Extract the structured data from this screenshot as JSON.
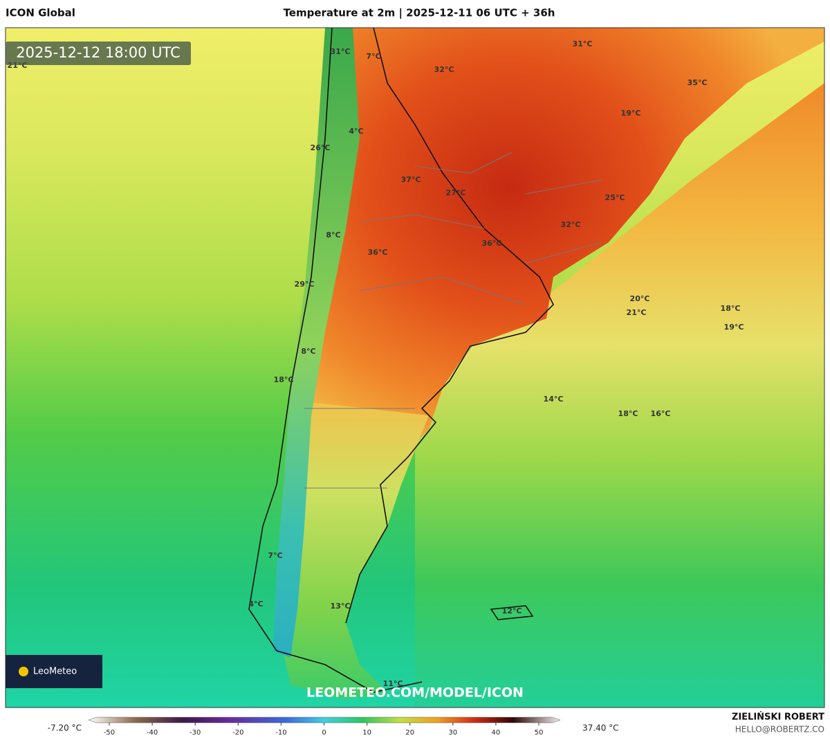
{
  "header": {
    "model": "ICON Global",
    "title": "Temperature at 2m | 2025-12-11 06 UTC + 36h"
  },
  "map": {
    "valid_time": "2025-12-12 18:00 UTC",
    "labels": [
      "21°C",
      "31°C",
      "7°C",
      "32°C",
      "31°C",
      "35°C",
      "19°C",
      "4°C",
      "26°C",
      "37°C",
      "27°C",
      "25°C",
      "32°C",
      "8°C",
      "36°C",
      "36°C",
      "29°C",
      "20°C",
      "21°C",
      "18°C",
      "19°C",
      "8°C",
      "18°C",
      "14°C",
      "18°C",
      "16°C",
      "7°C",
      "4°C",
      "13°C",
      "12°C",
      "11°C"
    ],
    "logo": "LeoMeteo",
    "watermark": "LEOMETEO.COM/MODEL/ICON"
  },
  "colorbar": {
    "min_label": "-7.20 °C",
    "max_label": "37.40 °C",
    "ticks": [
      -50,
      -40,
      -30,
      -20,
      -10,
      0,
      10,
      20,
      30,
      40,
      50
    ]
  },
  "footer": {
    "author": "ZIELIŃSKI ROBERT",
    "contact": "HELLO@ROBERTZ.CO"
  }
}
